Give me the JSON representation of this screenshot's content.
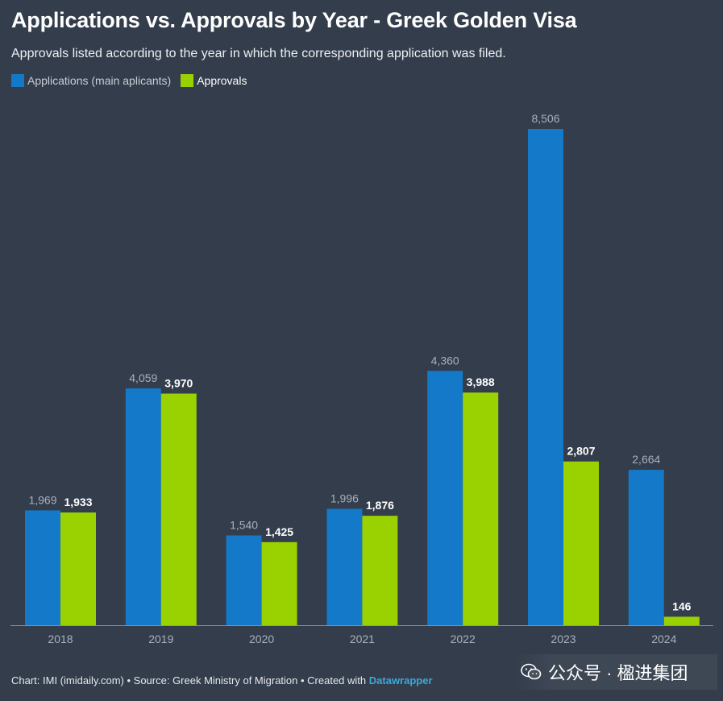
{
  "title": "Applications vs. Approvals by Year - Greek Golden Visa",
  "subtitle": "Approvals listed according to the year in which the corresponding application was filed.",
  "legend": {
    "applications": "Applications (main aplicants)",
    "approvals": "Approvals"
  },
  "colors": {
    "applications": "#1479c8",
    "approvals": "#9ad100",
    "background": "#333d4c",
    "axis_label": "#a9b0bb",
    "app_value_label": "#a9b0bb",
    "appr_value_label": "#ffffff"
  },
  "footer": {
    "text": "Chart: IMI (imidaily.com) • Source: Greek Ministry of Migration • Created with ",
    "link": "Datawrapper"
  },
  "watermark": {
    "text": "公众号 · 楹进集团",
    "icon": "wechat-icon"
  },
  "chart_data": {
    "type": "bar",
    "title": "Applications vs. Approvals by Year - Greek Golden Visa",
    "xlabel": "",
    "ylabel": "",
    "ylim": [
      0,
      8506
    ],
    "categories": [
      "2018",
      "2019",
      "2020",
      "2021",
      "2022",
      "2023",
      "2024"
    ],
    "series": [
      {
        "name": "Applications (main aplicants)",
        "values": [
          1969,
          4059,
          1540,
          1996,
          4360,
          8506,
          2664
        ],
        "labels": [
          "1,969",
          "4,059",
          "1,540",
          "1,996",
          "4,360",
          "8,506",
          "2,664"
        ]
      },
      {
        "name": "Approvals",
        "values": [
          1933,
          3970,
          1425,
          1876,
          3988,
          2807,
          146
        ],
        "labels": [
          "1,933",
          "3,970",
          "1,425",
          "1,876",
          "3,988",
          "2,807",
          "146"
        ]
      }
    ]
  }
}
